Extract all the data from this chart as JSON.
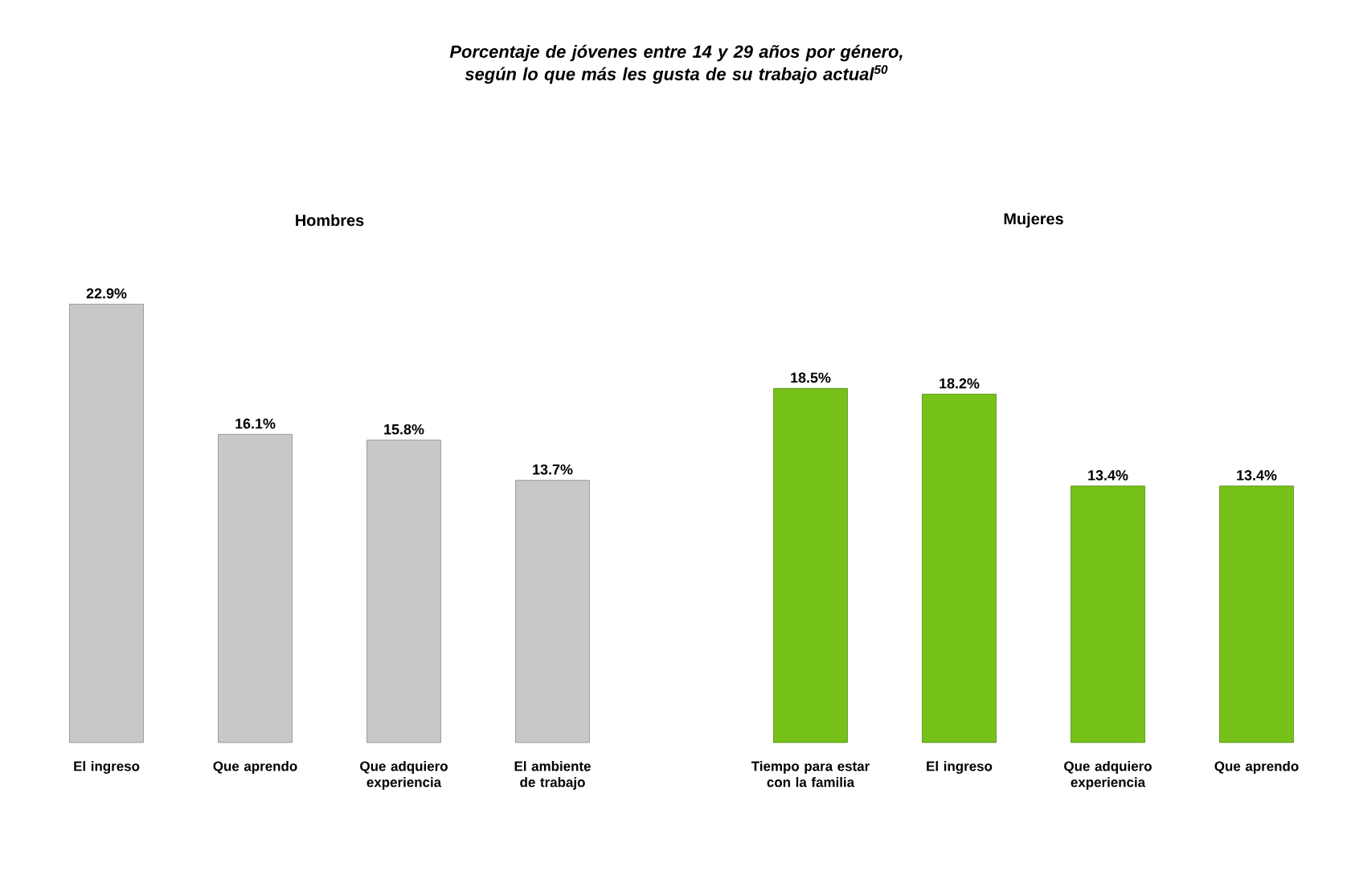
{
  "chart_data": [
    {
      "type": "bar",
      "title": "Porcentaje de jóvenes entre 14 y 29 años por género, según lo que más les gusta de su trabajo actual$^{50}$",
      "subtitle": "Hombres",
      "categories": [
        "El ingreso",
        "Que aprendo",
        "Que adquiero experiencia",
        "El ambiente de trabajo"
      ],
      "values": [
        22.9,
        16.1,
        15.8,
        13.7
      ],
      "value_labels": [
        "22.9%",
        "16.1%",
        "15.8%",
        "13.7%"
      ],
      "color": "#c8c8c8"
    },
    {
      "type": "bar",
      "subtitle": "Mujeres",
      "categories": [
        "Tiempo para estar con la familia",
        "El ingreso",
        "Que adquiero experiencia",
        "Que aprendo"
      ],
      "values": [
        18.5,
        18.2,
        13.4,
        13.4
      ],
      "value_labels": [
        "18.5%",
        "18.2%",
        "13.4%",
        "13.4%"
      ],
      "color": "#76c21a"
    }
  ]
}
